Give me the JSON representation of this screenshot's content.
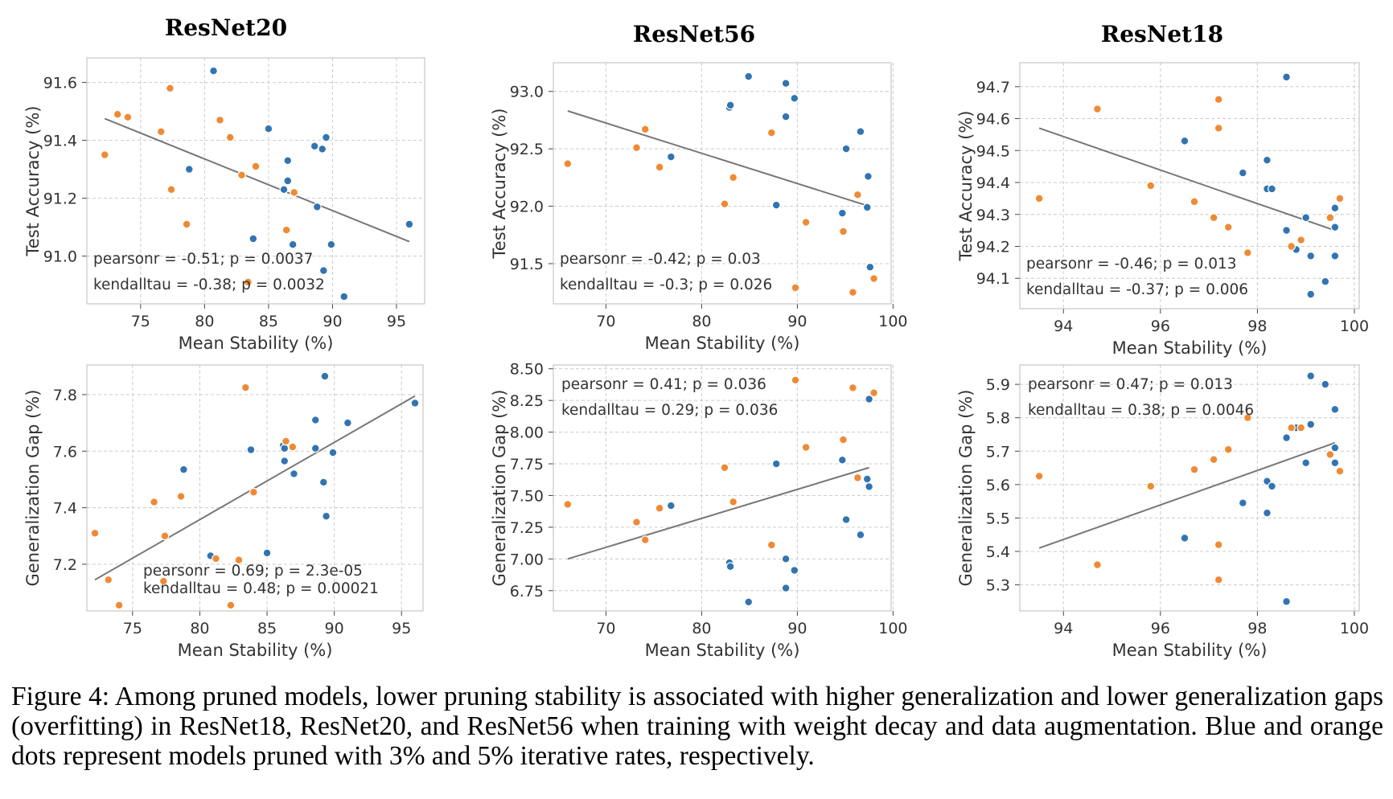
{
  "column_titles": [
    "ResNet20",
    "ResNet56",
    "ResNet18"
  ],
  "caption": "Figure 4: Among pruned models, lower pruning stability is associated with higher generalization and lower generalization gaps (overfitting) in ResNet18, ResNet20, and ResNet56 when training with weight decay and data augmentation. Blue and orange dots represent models pruned with 3% and 5% iterative rates, respectively.",
  "colors": {
    "blue": "#3274b2",
    "orange": "#ef8a34",
    "fit_line": "#777777",
    "grid": "#cccccc",
    "axis": "#444444"
  },
  "chart_data": [
    {
      "id": "resnet20-acc",
      "type": "scatter",
      "title": "",
      "xlabel": "Mean Stability (%)",
      "ylabel": "Test Accuracy (%)",
      "xlim": [
        70.8,
        97.2
      ],
      "ylim": [
        90.835,
        91.685
      ],
      "xticks": [
        75,
        80,
        85,
        90,
        95
      ],
      "yticks": [
        91.0,
        91.2,
        91.4,
        91.6
      ],
      "xtick_labels": [
        "75",
        "80",
        "85",
        "90",
        "95"
      ],
      "ytick_labels": [
        "91.0",
        "91.2",
        "91.4",
        "91.6"
      ],
      "series": [
        {
          "name": "3% iterative",
          "color": "blue",
          "points": [
            [
              80.7,
              91.64
            ],
            [
              85.0,
              91.44
            ],
            [
              78.8,
              91.3
            ],
            [
              86.5,
              91.33
            ],
            [
              86.5,
              91.26
            ],
            [
              86.2,
              91.23
            ],
            [
              89.5,
              91.41
            ],
            [
              88.6,
              91.38
            ],
            [
              89.2,
              91.37
            ],
            [
              88.8,
              91.17
            ],
            [
              83.8,
              91.06
            ],
            [
              86.9,
              91.04
            ],
            [
              89.9,
              91.04
            ],
            [
              96.0,
              91.11
            ],
            [
              89.3,
              90.95
            ],
            [
              90.9,
              90.86
            ]
          ]
        },
        {
          "name": "5% iterative",
          "color": "orange",
          "points": [
            [
              73.2,
              91.49
            ],
            [
              74.0,
              91.48
            ],
            [
              77.3,
              91.58
            ],
            [
              81.2,
              91.47
            ],
            [
              82.0,
              91.41
            ],
            [
              76.6,
              91.43
            ],
            [
              72.2,
              91.35
            ],
            [
              84.0,
              91.31
            ],
            [
              82.9,
              91.28
            ],
            [
              77.4,
              91.23
            ],
            [
              87.0,
              91.22
            ],
            [
              78.6,
              91.11
            ],
            [
              86.4,
              91.09
            ],
            [
              83.4,
              90.91
            ]
          ]
        }
      ],
      "fit": [
        [
          72.2,
          91.475
        ],
        [
          96.0,
          91.05
        ]
      ],
      "annotations": [
        "pearsonr = -0.51; p = 0.0037",
        "kendalltau = -0.38; p = 0.0032"
      ],
      "annotation_pos": "bottom-left"
    },
    {
      "id": "resnet56-acc",
      "type": "scatter",
      "title": "",
      "xlabel": "Mean Stability (%)",
      "ylabel": "Test Accuracy (%)",
      "xlim": [
        64.5,
        99.8
      ],
      "ylim": [
        91.15,
        93.25
      ],
      "xticks": [
        70,
        80,
        90,
        100
      ],
      "yticks": [
        91.5,
        92.0,
        92.5,
        93.0
      ],
      "xtick_labels": [
        "70",
        "80",
        "90",
        "100"
      ],
      "ytick_labels": [
        "91.5",
        "92.0",
        "92.5",
        "93.0"
      ],
      "series": [
        {
          "name": "3% iterative",
          "color": "blue",
          "points": [
            [
              84.9,
              93.13
            ],
            [
              88.8,
              93.07
            ],
            [
              89.7,
              92.94
            ],
            [
              82.9,
              92.86
            ],
            [
              83.0,
              92.88
            ],
            [
              88.8,
              92.78
            ],
            [
              96.6,
              92.65
            ],
            [
              95.1,
              92.5
            ],
            [
              76.8,
              92.43
            ],
            [
              97.4,
              92.26
            ],
            [
              87.8,
              92.01
            ],
            [
              94.7,
              91.94
            ],
            [
              97.3,
              91.99
            ],
            [
              97.6,
              91.47
            ]
          ]
        },
        {
          "name": "5% iterative",
          "color": "orange",
          "points": [
            [
              66.0,
              92.37
            ],
            [
              74.1,
              92.67
            ],
            [
              73.2,
              92.51
            ],
            [
              75.6,
              92.34
            ],
            [
              83.3,
              92.25
            ],
            [
              87.3,
              92.64
            ],
            [
              82.4,
              92.02
            ],
            [
              90.9,
              91.86
            ],
            [
              96.3,
              92.1
            ],
            [
              94.8,
              91.78
            ],
            [
              89.8,
              91.29
            ],
            [
              95.8,
              91.25
            ],
            [
              98.0,
              91.37
            ]
          ]
        }
      ],
      "fit": [
        [
          66.0,
          92.83
        ],
        [
          97.5,
          92.0
        ]
      ],
      "annotations": [
        "pearsonr = -0.42; p = 0.03",
        "kendalltau = -0.3; p = 0.026"
      ],
      "annotation_pos": "bottom-left"
    },
    {
      "id": "resnet18-acc",
      "type": "scatter",
      "title": "",
      "xlabel": "Mean Stability (%)",
      "ylabel": "Test Accuracy (%)",
      "xlim": [
        93.1,
        100.1
      ],
      "ylim": [
        94.005,
        94.775
      ],
      "xticks": [
        94,
        96,
        98,
        100
      ],
      "yticks": [
        94.1,
        94.2,
        94.3,
        94.4,
        94.5,
        94.6,
        94.7
      ],
      "xtick_labels": [
        "94",
        "96",
        "98",
        "100"
      ],
      "ytick_labels": [
        "94.1",
        "94.2",
        "94.3",
        "94.4",
        "94.5",
        "94.6",
        "94.7"
      ],
      "series": [
        {
          "name": "3% iterative",
          "color": "blue",
          "points": [
            [
              98.6,
              94.73
            ],
            [
              96.5,
              94.53
            ],
            [
              97.7,
              94.43
            ],
            [
              98.2,
              94.47
            ],
            [
              98.2,
              94.38
            ],
            [
              98.3,
              94.38
            ],
            [
              99.6,
              94.32
            ],
            [
              99.0,
              94.29
            ],
            [
              98.6,
              94.25
            ],
            [
              99.6,
              94.26
            ],
            [
              98.8,
              94.19
            ],
            [
              99.1,
              94.17
            ],
            [
              99.6,
              94.17
            ],
            [
              99.4,
              94.09
            ],
            [
              99.1,
              94.05
            ]
          ]
        },
        {
          "name": "5% iterative",
          "color": "orange",
          "points": [
            [
              94.7,
              94.63
            ],
            [
              97.2,
              94.66
            ],
            [
              97.2,
              94.57
            ],
            [
              93.5,
              94.35
            ],
            [
              95.8,
              94.39
            ],
            [
              96.7,
              94.34
            ],
            [
              97.1,
              94.29
            ],
            [
              97.4,
              94.26
            ],
            [
              98.9,
              94.22
            ],
            [
              98.7,
              94.2
            ],
            [
              97.8,
              94.18
            ],
            [
              99.5,
              94.29
            ],
            [
              99.7,
              94.35
            ]
          ]
        }
      ],
      "fit": [
        [
          93.5,
          94.57
        ],
        [
          99.6,
          94.25
        ]
      ],
      "annotations": [
        "pearsonr = -0.46; p = 0.013",
        "kendalltau = -0.37; p = 0.006"
      ],
      "annotation_pos": "bottom-left"
    },
    {
      "id": "resnet20-gap",
      "type": "scatter",
      "title": "",
      "xlabel": "Mean Stability (%)",
      "ylabel": "Generalization Gap (%)",
      "xlim": [
        71.6,
        96.6
      ],
      "ylim": [
        7.035,
        7.905
      ],
      "xticks": [
        75,
        80,
        85,
        90,
        95
      ],
      "yticks": [
        7.2,
        7.4,
        7.6,
        7.8
      ],
      "xtick_labels": [
        "75",
        "80",
        "85",
        "90",
        "95"
      ],
      "ytick_labels": [
        "7.2",
        "7.4",
        "7.6",
        "7.8"
      ],
      "series": [
        {
          "name": "3% iterative",
          "color": "blue",
          "points": [
            [
              89.3,
              7.865
            ],
            [
              96.0,
              7.77
            ],
            [
              88.6,
              7.71
            ],
            [
              91.0,
              7.7
            ],
            [
              83.8,
              7.605
            ],
            [
              86.2,
              7.62
            ],
            [
              86.3,
              7.61
            ],
            [
              88.6,
              7.61
            ],
            [
              86.3,
              7.565
            ],
            [
              89.9,
              7.595
            ],
            [
              87.0,
              7.52
            ],
            [
              78.8,
              7.535
            ],
            [
              89.2,
              7.49
            ],
            [
              89.4,
              7.37
            ],
            [
              80.8,
              7.23
            ],
            [
              85.0,
              7.24
            ]
          ]
        },
        {
          "name": "5% iterative",
          "color": "orange",
          "points": [
            [
              83.4,
              7.825
            ],
            [
              86.4,
              7.635
            ],
            [
              86.9,
              7.615
            ],
            [
              78.6,
              7.44
            ],
            [
              76.6,
              7.42
            ],
            [
              84.0,
              7.455
            ],
            [
              77.4,
              7.3
            ],
            [
              72.2,
              7.31
            ],
            [
              81.2,
              7.22
            ],
            [
              82.9,
              7.215
            ],
            [
              73.2,
              7.145
            ],
            [
              77.3,
              7.14
            ],
            [
              74.0,
              7.055
            ],
            [
              82.3,
              7.055
            ]
          ]
        }
      ],
      "fit": [
        [
          72.2,
          7.145
        ],
        [
          96.0,
          7.795
        ]
      ],
      "annotations": [
        "pearsonr = 0.69; p = 2.3e-05",
        "kendalltau = 0.48; p = 0.00021"
      ],
      "annotation_pos": "bottom-right"
    },
    {
      "id": "resnet56-gap",
      "type": "scatter",
      "title": "",
      "xlabel": "Mean Stability (%)",
      "ylabel": "Generalization Gap (%)",
      "xlim": [
        64.5,
        99.8
      ],
      "ylim": [
        6.59,
        8.53
      ],
      "xticks": [
        70,
        80,
        90,
        100
      ],
      "yticks": [
        6.75,
        7.0,
        7.25,
        7.5,
        7.75,
        8.0,
        8.25,
        8.5
      ],
      "xtick_labels": [
        "70",
        "80",
        "90",
        "100"
      ],
      "ytick_labels": [
        "6.75",
        "7.00",
        "7.25",
        "7.50",
        "7.75",
        "8.00",
        "8.25",
        "8.50"
      ],
      "series": [
        {
          "name": "3% iterative",
          "color": "blue",
          "points": [
            [
              97.5,
              8.26
            ],
            [
              87.8,
              7.75
            ],
            [
              94.7,
              7.78
            ],
            [
              97.3,
              7.63
            ],
            [
              97.5,
              7.57
            ],
            [
              76.8,
              7.42
            ],
            [
              95.1,
              7.31
            ],
            [
              96.6,
              7.19
            ],
            [
              82.9,
              6.97
            ],
            [
              83.0,
              6.94
            ],
            [
              88.8,
              7.0
            ],
            [
              89.7,
              6.91
            ],
            [
              88.8,
              6.77
            ],
            [
              84.9,
              6.66
            ]
          ]
        },
        {
          "name": "5% iterative",
          "color": "orange",
          "points": [
            [
              89.8,
              8.41
            ],
            [
              95.8,
              8.35
            ],
            [
              98.0,
              8.31
            ],
            [
              94.8,
              7.94
            ],
            [
              90.9,
              7.88
            ],
            [
              82.4,
              7.72
            ],
            [
              96.3,
              7.64
            ],
            [
              66.0,
              7.43
            ],
            [
              75.6,
              7.4
            ],
            [
              83.3,
              7.45
            ],
            [
              73.2,
              7.29
            ],
            [
              74.1,
              7.15
            ],
            [
              87.3,
              7.11
            ]
          ]
        }
      ],
      "fit": [
        [
          66.0,
          7.0
        ],
        [
          97.5,
          7.72
        ]
      ],
      "annotations": [
        "pearsonr = 0.41; p = 0.036",
        "kendalltau = 0.29; p = 0.036"
      ],
      "annotation_pos": "top-left"
    },
    {
      "id": "resnet18-gap",
      "type": "scatter",
      "title": "",
      "xlabel": "Mean Stability (%)",
      "ylabel": "Generalization Gap (%)",
      "xlim": [
        93.1,
        100.1
      ],
      "ylim": [
        5.222,
        5.958
      ],
      "xticks": [
        94,
        96,
        98,
        100
      ],
      "yticks": [
        5.3,
        5.4,
        5.5,
        5.6,
        5.7,
        5.8,
        5.9
      ],
      "xtick_labels": [
        "94",
        "96",
        "98",
        "100"
      ],
      "ytick_labels": [
        "5.3",
        "5.4",
        "5.5",
        "5.6",
        "5.7",
        "5.8",
        "5.9"
      ],
      "series": [
        {
          "name": "3% iterative",
          "color": "blue",
          "points": [
            [
              99.1,
              5.925
            ],
            [
              99.4,
              5.9
            ],
            [
              99.6,
              5.825
            ],
            [
              99.1,
              5.78
            ],
            [
              98.8,
              5.77
            ],
            [
              98.6,
              5.74
            ],
            [
              99.6,
              5.71
            ],
            [
              99.0,
              5.665
            ],
            [
              99.6,
              5.665
            ],
            [
              98.2,
              5.61
            ],
            [
              98.3,
              5.595
            ],
            [
              97.7,
              5.545
            ],
            [
              98.2,
              5.515
            ],
            [
              96.5,
              5.44
            ],
            [
              98.6,
              5.25
            ]
          ]
        },
        {
          "name": "5% iterative",
          "color": "orange",
          "points": [
            [
              97.8,
              5.8
            ],
            [
              98.7,
              5.77
            ],
            [
              98.9,
              5.77
            ],
            [
              99.5,
              5.69
            ],
            [
              99.7,
              5.64
            ],
            [
              97.4,
              5.705
            ],
            [
              97.1,
              5.675
            ],
            [
              96.7,
              5.645
            ],
            [
              95.8,
              5.595
            ],
            [
              93.5,
              5.625
            ],
            [
              97.2,
              5.42
            ],
            [
              94.7,
              5.36
            ],
            [
              97.2,
              5.315
            ]
          ]
        }
      ],
      "fit": [
        [
          93.5,
          5.41
        ],
        [
          99.6,
          5.725
        ]
      ],
      "annotations": [
        "pearsonr = 0.47; p = 0.013",
        "kendalltau = 0.38; p = 0.0046"
      ],
      "annotation_pos": "top-left"
    }
  ]
}
